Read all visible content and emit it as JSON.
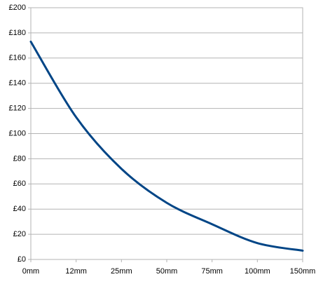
{
  "chart_data": {
    "type": "line",
    "categories": [
      "0mm",
      "12mm",
      "25mm",
      "50mm",
      "75mm",
      "100mm",
      "150mm"
    ],
    "values": [
      173,
      113,
      72,
      45,
      28,
      13,
      7
    ],
    "color": "#004586",
    "ylim": [
      0,
      200
    ],
    "yticks": [
      {
        "value": 0,
        "label": "£0"
      },
      {
        "value": 20,
        "label": "£20"
      },
      {
        "value": 40,
        "label": "£40"
      },
      {
        "value": 60,
        "label": "£60"
      },
      {
        "value": 80,
        "label": "£80"
      },
      {
        "value": 100,
        "label": "£100"
      },
      {
        "value": 120,
        "label": "£120"
      },
      {
        "value": 140,
        "label": "£140"
      },
      {
        "value": 160,
        "label": "£160"
      },
      {
        "value": 180,
        "label": "£180"
      },
      {
        "value": 200,
        "label": "£200"
      }
    ],
    "grid": true,
    "smooth": true
  }
}
